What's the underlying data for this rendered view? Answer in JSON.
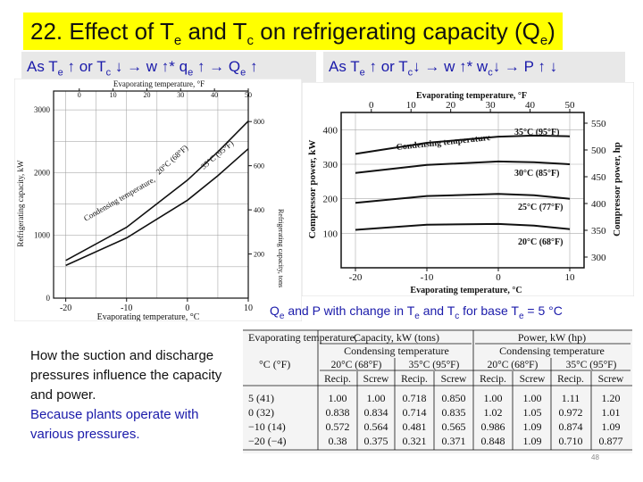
{
  "title": {
    "text": "22. Effect of T",
    "sub1": "e",
    "mid": " and T",
    "sub2": "c",
    "tail": " on refrigerating capacity (Q",
    "sub3": "e",
    "end": ")"
  },
  "eq1": {
    "a": "As T",
    "as": "e",
    "b": " ↑  or  T",
    "bs": "c",
    "c": " ↓ → w ↑* q",
    "cs": "e",
    "d": " ↑ → Q",
    "ds": "e",
    "e": " ↑"
  },
  "eq2": {
    "a": "As T",
    "as": "e",
    "b": " ↑ or  T",
    "bs": "c",
    "c": "↓ → w ↑* w",
    "cs": "c",
    "d": "↓ → P ↑ ↓"
  },
  "caption": {
    "a": "Q",
    "as": "e",
    "b": " and P with change in T",
    "bs": "e",
    "c": " and T",
    "cs": "c",
    "d": " for base T",
    "ds": "e",
    "e": " = 5 °C"
  },
  "note": {
    "line1": "How the suction and discharge pressures influence the capacity and power.",
    "line2": "Because plants operate with various pressures."
  },
  "page_number": "48",
  "chart_data": [
    {
      "type": "line",
      "title": "",
      "xlabel": "Evaporating temperature, °C",
      "x2label": "Evaporating temperature, °F",
      "ylabel": "Refrigerating capacity, kW",
      "y2label": "Refrigerating capacity, tons",
      "xlim": [
        -22,
        10
      ],
      "ylim": [
        0,
        3300
      ],
      "x_ticks": [
        "-20",
        "-10",
        "0",
        "10"
      ],
      "x2_ticks": [
        "0",
        "10",
        "20",
        "30",
        "40",
        "50"
      ],
      "y_ticks": [
        "0",
        "1000",
        "2000",
        "3000"
      ],
      "y2_ticks": [
        "200",
        "400",
        "600",
        "800"
      ],
      "annotation": "Condensing temperature,",
      "series": [
        {
          "name": "20°C (68°F)",
          "x": [
            -20,
            -10,
            0,
            5,
            10
          ],
          "y": [
            600,
            1130,
            1880,
            2330,
            2820
          ]
        },
        {
          "name": "35°C (95°F)",
          "x": [
            -20,
            -10,
            0,
            5,
            10
          ],
          "y": [
            520,
            960,
            1560,
            1950,
            2380
          ]
        }
      ]
    },
    {
      "type": "line",
      "title": "",
      "xlabel": "Evaporating temperature, °C",
      "x2label": "Evaporating temperature, °F",
      "ylabel": "Compressor power, kW",
      "y2label": "Compressor power, hp",
      "xlim": [
        -22,
        12
      ],
      "ylim": [
        0,
        450
      ],
      "x_ticks": [
        "-20",
        "-10",
        "0",
        "10"
      ],
      "x2_ticks": [
        "0",
        "10",
        "20",
        "30",
        "40",
        "50"
      ],
      "y_ticks": [
        "100",
        "200",
        "300",
        "400"
      ],
      "y2_ticks": [
        "300",
        "350",
        "400",
        "450",
        "500",
        "550"
      ],
      "annotation": "Condensing temperature",
      "series": [
        {
          "name": "35°C (95°F)",
          "x": [
            -20,
            -10,
            0,
            5,
            10
          ],
          "y": [
            330,
            362,
            380,
            383,
            381
          ]
        },
        {
          "name": "30°C (85°F)",
          "x": [
            -20,
            -10,
            0,
            5,
            10
          ],
          "y": [
            275,
            298,
            308,
            306,
            300
          ]
        },
        {
          "name": "25°C (77°F)",
          "x": [
            -20,
            -10,
            0,
            5,
            10
          ],
          "y": [
            188,
            208,
            214,
            210,
            200
          ]
        },
        {
          "name": "20°C (68°F)",
          "x": [
            -20,
            -10,
            0,
            5,
            10
          ],
          "y": [
            110,
            125,
            127,
            122,
            112
          ]
        }
      ]
    },
    {
      "type": "table",
      "group_headers": [
        "Evaporating temperature,",
        "Capacity, kW (tons)",
        "Power, kW (hp)"
      ],
      "stub_header_2": "°C (°F)",
      "sub_headers": [
        "Condensing temperature",
        "Condensing temperature"
      ],
      "temp_headers": [
        "20°C (68°F)",
        "35°C (95°F)",
        "20°C (68°F)",
        "35°C (95°F)"
      ],
      "type_headers": [
        "Recip.",
        "Screw",
        "Recip.",
        "Screw",
        "Recip.",
        "Screw",
        "Recip.",
        "Screw"
      ],
      "rows": [
        {
          "label": "5 (41)",
          "values": [
            "1.00",
            "1.00",
            "0.718",
            "0.850",
            "1.00",
            "1.00",
            "1.11",
            "1.20"
          ]
        },
        {
          "label": "0 (32)",
          "values": [
            "0.838",
            "0.834",
            "0.714",
            "0.835",
            "1.02",
            "1.05",
            "0.972",
            "1.01"
          ]
        },
        {
          "label": "−10 (14)",
          "values": [
            "0.572",
            "0.564",
            "0.481",
            "0.565",
            "0.986",
            "1.09",
            "0.874",
            "1.09"
          ]
        },
        {
          "label": "−20 (−4)",
          "values": [
            "0.38",
            "0.375",
            "0.321",
            "0.371",
            "0.848",
            "1.09",
            "0.710",
            "0.877"
          ]
        }
      ]
    }
  ]
}
